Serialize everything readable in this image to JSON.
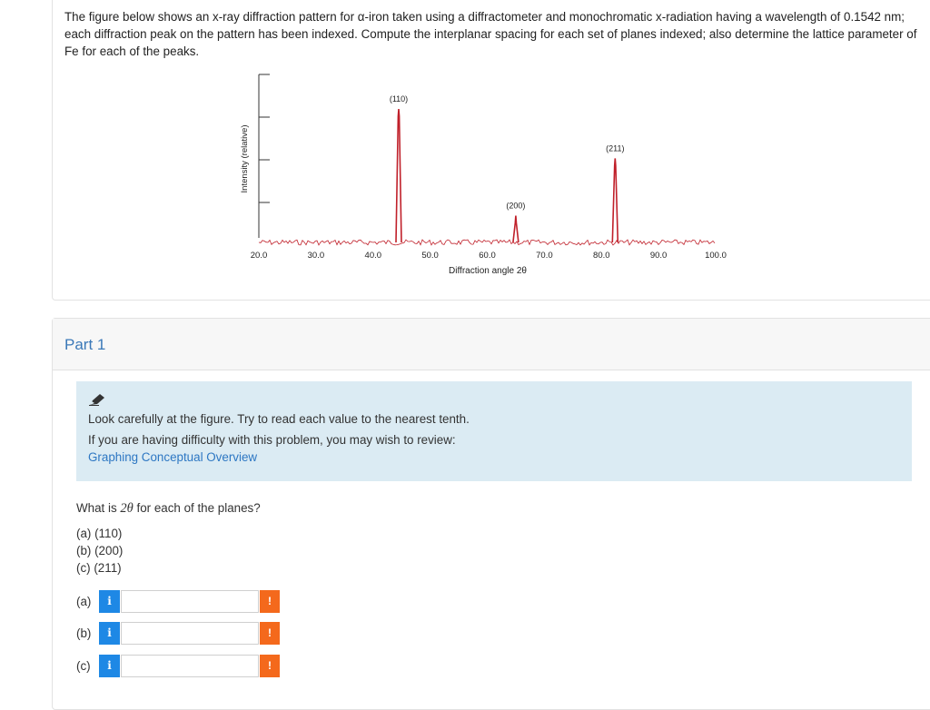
{
  "question": {
    "text": "The figure below shows an x-ray diffraction pattern for α-iron taken using a diffractometer and monochromatic x-radiation having a wavelength of 0.1542 nm; each diffraction peak on the pattern has been indexed. Compute the interplanar spacing for each set of planes indexed; also determine the lattice parameter of Fe for each of the peaks."
  },
  "chart_data": {
    "type": "line",
    "title": "",
    "xlabel": "Diffraction angle 2θ",
    "ylabel": "Intensity (relative)",
    "xlim": [
      20.0,
      100.0
    ],
    "xticks": [
      "20.0",
      "30.0",
      "40.0",
      "50.0",
      "60.0",
      "70.0",
      "80.0",
      "90.0",
      "100.0"
    ],
    "peaks": [
      {
        "label": "(110)",
        "x": 44.5,
        "height": 1.0
      },
      {
        "label": "(200)",
        "x": 65.0,
        "height": 0.2
      },
      {
        "label": "(211)",
        "x": 82.4,
        "height": 0.63
      }
    ],
    "grid": false,
    "color": "#c0202a"
  },
  "part": {
    "title": "Part 1"
  },
  "hint": {
    "icon": "pencil-icon",
    "line1": "Look carefully at the figure. Try to read each value to the nearest tenth.",
    "line2": "If you are having difficulty with this problem, you may wish to review:",
    "link": "Graphing Conceptual Overview"
  },
  "prompt": {
    "before": "What is ",
    "symbol": "2θ",
    "after": " for each of the planes?"
  },
  "planes": [
    "(a) (110)",
    "(b) (200)",
    "(c) (211)"
  ],
  "answers": [
    {
      "label": "(a)",
      "value": "",
      "info_icon": "i",
      "warning_icon": "!"
    },
    {
      "label": "(b)",
      "value": "",
      "info_icon": "i",
      "warning_icon": "!"
    },
    {
      "label": "(c)",
      "value": "",
      "info_icon": "i",
      "warning_icon": "!"
    }
  ],
  "colors": {
    "accent": "#3a78b8",
    "info": "#1e88e5",
    "warning": "#f4691c",
    "hint_background": "#dbebf3",
    "link": "#2d77c3"
  }
}
